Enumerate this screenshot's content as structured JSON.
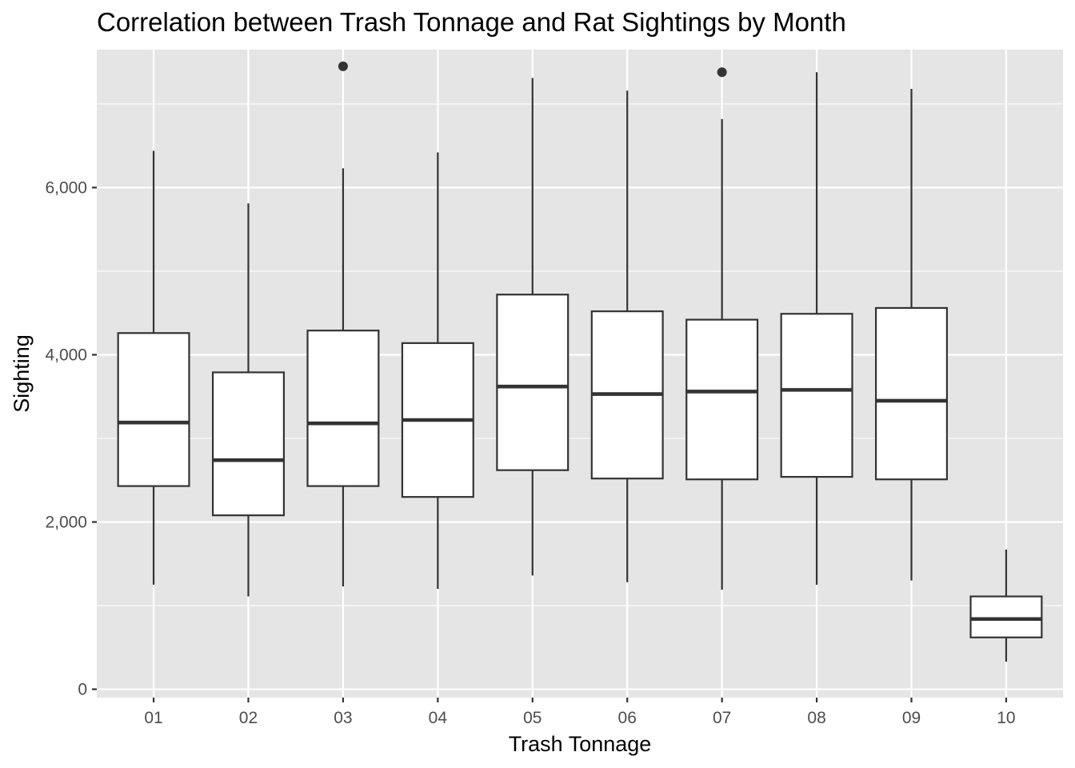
{
  "chart_data": {
    "type": "boxplot",
    "title": "Correlation between Trash Tonnage and Rat Sightings by Month",
    "xlabel": "Trash Tonnage",
    "ylabel": "Sighting",
    "categories": [
      "01",
      "02",
      "03",
      "04",
      "05",
      "06",
      "07",
      "08",
      "09",
      "10"
    ],
    "ylim": [
      -100,
      7650
    ],
    "yticks": [
      0,
      2000,
      4000,
      6000
    ],
    "ytick_labels": [
      "0",
      "2,000",
      "4,000",
      "6,000"
    ],
    "grid": true,
    "legend": "none",
    "boxes": [
      {
        "category": "01",
        "whisker_low": 1250,
        "q1": 2430,
        "median": 3190,
        "q3": 4260,
        "whisker_high": 6440,
        "outliers": []
      },
      {
        "category": "02",
        "whisker_low": 1110,
        "q1": 2080,
        "median": 2740,
        "q3": 3790,
        "whisker_high": 5810,
        "outliers": []
      },
      {
        "category": "03",
        "whisker_low": 1230,
        "q1": 2430,
        "median": 3180,
        "q3": 4290,
        "whisker_high": 6230,
        "outliers": [
          7450
        ]
      },
      {
        "category": "04",
        "whisker_low": 1200,
        "q1": 2300,
        "median": 3220,
        "q3": 4140,
        "whisker_high": 6420,
        "outliers": []
      },
      {
        "category": "05",
        "whisker_low": 1360,
        "q1": 2620,
        "median": 3620,
        "q3": 4720,
        "whisker_high": 7310,
        "outliers": []
      },
      {
        "category": "06",
        "whisker_low": 1280,
        "q1": 2520,
        "median": 3530,
        "q3": 4520,
        "whisker_high": 7160,
        "outliers": []
      },
      {
        "category": "07",
        "whisker_low": 1190,
        "q1": 2510,
        "median": 3560,
        "q3": 4420,
        "whisker_high": 6820,
        "outliers": [
          7380
        ]
      },
      {
        "category": "08",
        "whisker_low": 1250,
        "q1": 2540,
        "median": 3580,
        "q3": 4490,
        "whisker_high": 7380,
        "outliers": []
      },
      {
        "category": "09",
        "whisker_low": 1300,
        "q1": 2510,
        "median": 3450,
        "q3": 4560,
        "whisker_high": 7180,
        "outliers": []
      },
      {
        "category": "10",
        "whisker_low": 330,
        "q1": 620,
        "median": 840,
        "q3": 1110,
        "whisker_high": 1670,
        "outliers": []
      }
    ],
    "colors": {
      "panel_background": "#e5e5e5",
      "grid": "#ffffff",
      "box_fill": "#ffffff",
      "box_stroke": "#333333"
    }
  }
}
